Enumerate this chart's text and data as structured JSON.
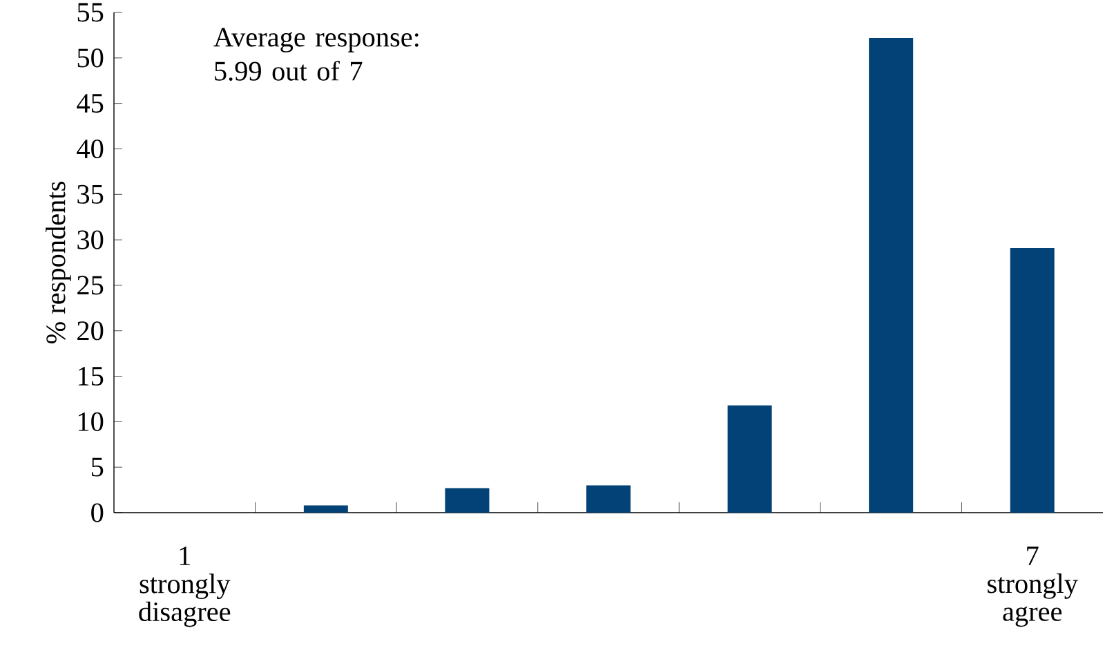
{
  "chart_data": {
    "type": "bar",
    "categories": [
      "1 strongly disagree",
      null,
      null,
      null,
      null,
      null,
      "7 strongly agree"
    ],
    "values": [
      0,
      0.8,
      2.7,
      3.0,
      11.8,
      52.2,
      29.1
    ],
    "color": "#024276",
    "ylabel": "% respondents",
    "ylim": [
      0,
      55
    ],
    "yticks": [
      0,
      5,
      10,
      15,
      20,
      25,
      30,
      35,
      40,
      45,
      50,
      55
    ],
    "annotations": [
      "Average response: 5.99 out of 7"
    ],
    "grid": false
  }
}
